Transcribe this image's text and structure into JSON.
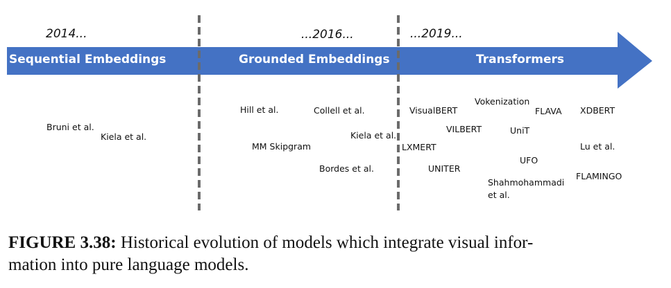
{
  "timeline": {
    "years": [
      "2014...",
      "...2016...",
      "...2019..."
    ],
    "segments": [
      "Sequential Embeddings",
      "Grounded Embeddings",
      "Transformers"
    ],
    "arrow_color": "#4472C4",
    "divider_color": "#6b6b6b"
  },
  "models": {
    "sequential": [
      "Bruni et al.",
      "Kiela et al."
    ],
    "grounded": [
      "Hill et al.",
      "Collell et al.",
      "MM Skipgram",
      "Kiela et al.",
      "Bordes et al."
    ],
    "transformers": [
      "VisualBERT",
      "Vokenization",
      "FLAVA",
      "XDBERT",
      "VILBERT",
      "UniT",
      "LXMERT",
      "Lu et al.",
      "UFO",
      "UNITER",
      "Shahmohammadi",
      "et al.",
      "FLAMINGO"
    ]
  },
  "caption": {
    "label": "FIGURE 3.38:",
    "line1": "Historical evolution of models which integrate visual infor-",
    "line2": "mation into pure language models."
  }
}
